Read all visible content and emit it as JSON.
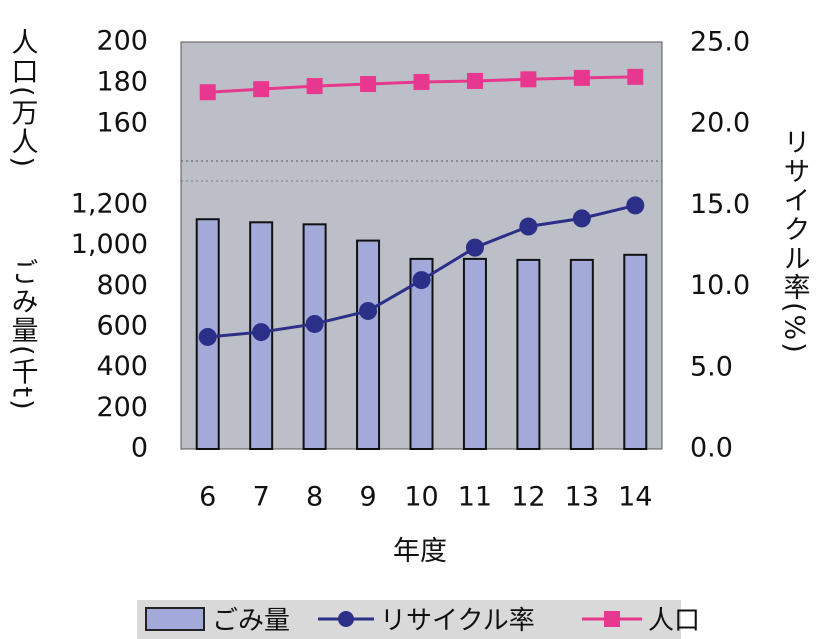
{
  "chart_data": {
    "type": "bar-line-combo",
    "title": "",
    "xlabel": "年度",
    "categories": [
      "6",
      "7",
      "8",
      "9",
      "10",
      "11",
      "12",
      "13",
      "14"
    ],
    "left_axis_lower": {
      "label": "ごみ量(千t)",
      "range": [
        0,
        1200
      ],
      "ticks": [
        "0",
        "200",
        "400",
        "600",
        "800",
        "1,000",
        "1,200"
      ]
    },
    "left_axis_upper": {
      "label": "人口(万人)",
      "range": [
        160,
        200
      ],
      "ticks": [
        "160",
        "180",
        "200"
      ]
    },
    "right_axis": {
      "label": "リサイクル率(%)",
      "range": [
        0,
        25
      ],
      "ticks": [
        "0.0",
        "5.0",
        "10.0",
        "15.0",
        "20.0",
        "25.0"
      ]
    },
    "series": [
      {
        "name": "ごみ量",
        "kind": "bar",
        "axis": "left_lower",
        "color": "#a3a9d8",
        "values": [
          1130,
          1115,
          1105,
          1025,
          935,
          935,
          930,
          930,
          955
        ]
      },
      {
        "name": "リサイクル率",
        "kind": "line",
        "axis": "right",
        "color": "#2c2f87",
        "values": [
          6.9,
          7.2,
          7.7,
          8.5,
          10.4,
          12.4,
          13.7,
          14.2,
          15.0
        ]
      },
      {
        "name": "人口",
        "kind": "line",
        "axis": "left_upper",
        "color": "#e8378f",
        "values": [
          175.5,
          177.0,
          178.5,
          179.5,
          180.5,
          181.0,
          181.8,
          182.5,
          183.0
        ]
      }
    ],
    "grid": false,
    "legend_position": "bottom"
  },
  "colors": {
    "plot_background": "#bcbfc8",
    "bar_fill": "#a3a9d8",
    "recycle_line": "#2c2f87",
    "population_line": "#e8378f"
  }
}
